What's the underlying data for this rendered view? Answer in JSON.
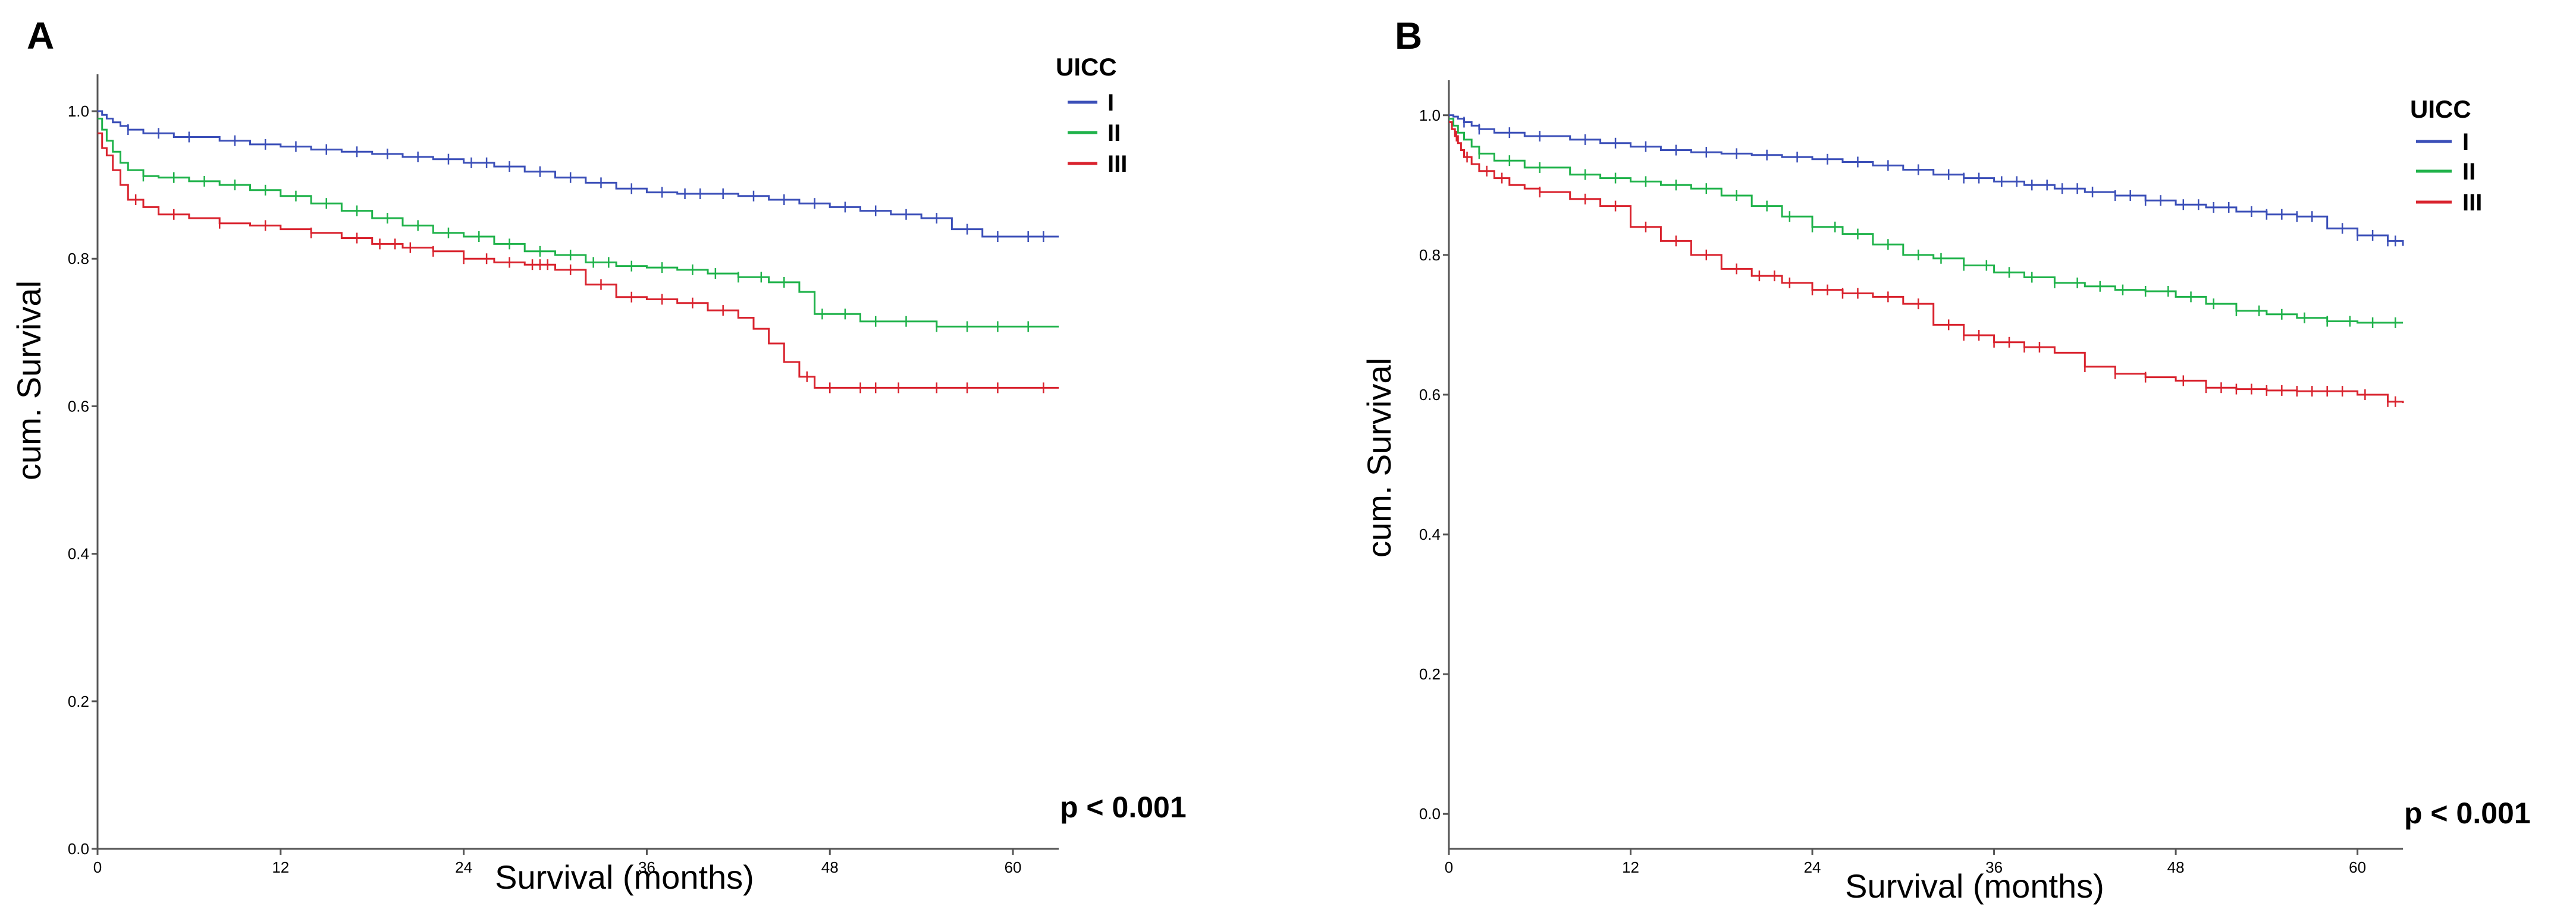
{
  "chart_data": [
    {
      "type": "line",
      "panel_label": "A",
      "xlabel": "Survival (months)",
      "ylabel": "cum. Survival",
      "xlim": [
        0,
        63
      ],
      "ylim": [
        0,
        1.05
      ],
      "x_ticks": [
        0,
        12,
        24,
        36,
        48,
        60
      ],
      "x_tick_labels": [
        "0",
        "12",
        "24",
        "36",
        "48",
        "60"
      ],
      "y_ticks": [
        0,
        0.2,
        0.4,
        0.6,
        0.8,
        1.0
      ],
      "y_tick_labels": [
        "0.0",
        "0.2",
        "0.4",
        "0.6",
        "0.8",
        "1.0"
      ],
      "legend_title": "UICC",
      "annotation": "p < 0.001",
      "series": [
        {
          "name": "I",
          "color": "#3b4fb8",
          "x": [
            0,
            0.3,
            0.6,
            1,
            1.5,
            2,
            3,
            5,
            8,
            10,
            12,
            14,
            16,
            18,
            20,
            22,
            24,
            26,
            28,
            30,
            32,
            34,
            36,
            38,
            40,
            42,
            44,
            46,
            48,
            50,
            52,
            54,
            56,
            58,
            60,
            63
          ],
          "y": [
            1.0,
            0.995,
            0.99,
            0.985,
            0.98,
            0.975,
            0.97,
            0.965,
            0.96,
            0.955,
            0.952,
            0.948,
            0.945,
            0.942,
            0.938,
            0.935,
            0.93,
            0.925,
            0.918,
            0.91,
            0.903,
            0.895,
            0.89,
            0.888,
            0.888,
            0.885,
            0.88,
            0.875,
            0.87,
            0.865,
            0.86,
            0.855,
            0.84,
            0.83,
            0.83,
            0.83
          ],
          "censored_x": [
            2,
            4,
            6,
            9,
            11,
            13,
            15,
            17,
            19,
            21,
            23,
            24.5,
            25.5,
            27,
            29,
            31,
            33,
            35,
            37,
            38.5,
            39.5,
            41,
            43,
            45,
            47,
            49,
            51,
            53,
            55,
            57,
            59,
            61,
            62
          ]
        },
        {
          "name": "II",
          "color": "#1fb24a",
          "x": [
            0,
            0.3,
            0.6,
            1,
            1.5,
            2,
            3,
            4,
            6,
            8,
            10,
            12,
            14,
            16,
            18,
            20,
            22,
            24,
            26,
            28,
            30,
            32,
            34,
            36,
            38,
            40,
            42,
            44,
            46,
            47,
            50,
            55,
            60,
            63
          ],
          "y": [
            0.99,
            0.975,
            0.96,
            0.945,
            0.93,
            0.92,
            0.912,
            0.91,
            0.905,
            0.9,
            0.893,
            0.885,
            0.875,
            0.865,
            0.855,
            0.845,
            0.835,
            0.83,
            0.82,
            0.81,
            0.805,
            0.795,
            0.79,
            0.788,
            0.785,
            0.78,
            0.775,
            0.768,
            0.755,
            0.725,
            0.715,
            0.708,
            0.708,
            0.708
          ],
          "censored_x": [
            3,
            5,
            7,
            9,
            11,
            13,
            15,
            17,
            19,
            21,
            23,
            25,
            27,
            29,
            31,
            32.5,
            33.5,
            35,
            37,
            39,
            40.5,
            42,
            43.5,
            45,
            47.5,
            49,
            51,
            53,
            55,
            57,
            59,
            61
          ]
        },
        {
          "name": "III",
          "color": "#d9232e",
          "x": [
            0,
            0.3,
            0.6,
            1,
            1.5,
            2,
            3,
            4,
            6,
            8,
            10,
            12,
            14,
            16,
            18,
            20,
            22,
            24,
            26,
            28,
            30,
            32,
            34,
            36,
            38,
            40,
            42,
            43,
            44,
            45,
            46,
            47,
            50,
            55,
            60,
            63
          ],
          "y": [
            0.97,
            0.95,
            0.94,
            0.92,
            0.9,
            0.88,
            0.87,
            0.86,
            0.855,
            0.848,
            0.845,
            0.84,
            0.835,
            0.828,
            0.82,
            0.815,
            0.81,
            0.8,
            0.795,
            0.792,
            0.785,
            0.765,
            0.748,
            0.745,
            0.74,
            0.73,
            0.72,
            0.705,
            0.685,
            0.66,
            0.64,
            0.625,
            0.625,
            0.625,
            0.625,
            0.625
          ],
          "censored_x": [
            2.5,
            5,
            8,
            11,
            14,
            17,
            18.5,
            19.5,
            20.5,
            22,
            24,
            25.5,
            27,
            28.5,
            29,
            29.5,
            31,
            33,
            35,
            37,
            39,
            41,
            46.5,
            48,
            50,
            51,
            52.5,
            55,
            57,
            59,
            62
          ]
        }
      ]
    },
    {
      "type": "line",
      "panel_label": "B",
      "xlabel": "Survival (months)",
      "ylabel": "cum. Survival",
      "xlim": [
        0,
        63
      ],
      "ylim": [
        -0.05,
        1.05
      ],
      "x_ticks": [
        0,
        12,
        24,
        36,
        48,
        60
      ],
      "x_tick_labels": [
        "0",
        "12",
        "24",
        "36",
        "48",
        "60"
      ],
      "y_ticks": [
        0,
        0.2,
        0.4,
        0.6,
        0.8,
        1.0
      ],
      "y_tick_labels": [
        "0.0",
        "0.2",
        "0.4",
        "0.6",
        "0.8",
        "1.0"
      ],
      "legend_title": "UICC",
      "annotation": "p < 0.001",
      "series": [
        {
          "name": "I",
          "color": "#3b4fb8",
          "x": [
            0,
            0.3,
            0.6,
            1,
            1.5,
            2,
            3,
            5,
            8,
            10,
            12,
            14,
            16,
            18,
            20,
            22,
            24,
            26,
            28,
            30,
            32,
            34,
            36,
            38,
            40,
            42,
            44,
            46,
            48,
            50,
            52,
            54,
            56,
            58,
            60,
            62,
            63
          ],
          "y": [
            1.0,
            0.998,
            0.995,
            0.99,
            0.985,
            0.98,
            0.975,
            0.97,
            0.965,
            0.96,
            0.955,
            0.95,
            0.947,
            0.945,
            0.943,
            0.94,
            0.937,
            0.933,
            0.928,
            0.922,
            0.915,
            0.91,
            0.905,
            0.9,
            0.895,
            0.89,
            0.885,
            0.878,
            0.872,
            0.868,
            0.862,
            0.858,
            0.855,
            0.838,
            0.828,
            0.82,
            0.813
          ],
          "censored_x": [
            1,
            2,
            4,
            6,
            9,
            11,
            13,
            15,
            17,
            19,
            21,
            23,
            25,
            27,
            29,
            31,
            33,
            34,
            35,
            36.5,
            37.5,
            38.5,
            39.5,
            40.5,
            41.5,
            42.5,
            44,
            45,
            46,
            47,
            48.5,
            49.5,
            50.5,
            51.5,
            53,
            54,
            55,
            56,
            57,
            59,
            60,
            61,
            62,
            62.5
          ]
        },
        {
          "name": "II",
          "color": "#1fb24a",
          "x": [
            0,
            0.3,
            0.6,
            1,
            1.5,
            2,
            3,
            5,
            8,
            10,
            12,
            14,
            16,
            18,
            20,
            22,
            24,
            26,
            28,
            30,
            32,
            34,
            36,
            38,
            40,
            42,
            44,
            46,
            48,
            50,
            52,
            54,
            56,
            58,
            60,
            63
          ],
          "y": [
            0.995,
            0.985,
            0.975,
            0.965,
            0.955,
            0.945,
            0.935,
            0.925,
            0.915,
            0.91,
            0.905,
            0.9,
            0.895,
            0.885,
            0.87,
            0.855,
            0.84,
            0.83,
            0.815,
            0.8,
            0.795,
            0.785,
            0.775,
            0.768,
            0.76,
            0.755,
            0.75,
            0.748,
            0.74,
            0.73,
            0.72,
            0.715,
            0.71,
            0.705,
            0.703,
            0.703
          ],
          "censored_x": [
            2,
            4,
            6,
            9,
            11,
            13,
            15,
            17,
            19,
            21,
            22.5,
            24,
            25.5,
            27,
            29,
            31,
            32.5,
            34,
            35.5,
            37,
            38.5,
            40,
            41.5,
            43,
            44.5,
            46,
            47.5,
            49,
            50.5,
            52,
            53.5,
            55,
            56.5,
            58,
            59.5,
            61,
            62.5
          ]
        },
        {
          "name": "III",
          "color": "#d9232e",
          "x": [
            0,
            0.2,
            0.4,
            0.6,
            0.8,
            1,
            1.5,
            2,
            3,
            4,
            5,
            6,
            8,
            10,
            12,
            14,
            16,
            18,
            20,
            22,
            24,
            26,
            28,
            30,
            32,
            34,
            36,
            38,
            40,
            42,
            44,
            46,
            48,
            50,
            52,
            54,
            56,
            58,
            60,
            62,
            63
          ],
          "y": [
            0.99,
            0.98,
            0.97,
            0.96,
            0.95,
            0.94,
            0.93,
            0.92,
            0.91,
            0.9,
            0.895,
            0.89,
            0.88,
            0.87,
            0.84,
            0.82,
            0.8,
            0.78,
            0.77,
            0.76,
            0.75,
            0.745,
            0.74,
            0.73,
            0.7,
            0.685,
            0.675,
            0.668,
            0.66,
            0.64,
            0.63,
            0.625,
            0.62,
            0.61,
            0.608,
            0.606,
            0.605,
            0.605,
            0.6,
            0.59,
            0.588
          ],
          "censored_x": [
            0.5,
            1.2,
            2.5,
            3.5,
            6,
            9,
            11,
            13,
            15,
            17,
            19,
            20.5,
            21.5,
            22.5,
            24,
            25,
            26,
            27,
            29,
            31,
            33,
            34,
            35,
            36,
            37,
            38,
            39,
            42,
            44,
            46,
            48.5,
            50,
            51,
            52,
            53,
            54,
            55,
            56,
            57,
            58,
            59,
            60.5,
            62,
            62.5
          ]
        }
      ]
    }
  ]
}
